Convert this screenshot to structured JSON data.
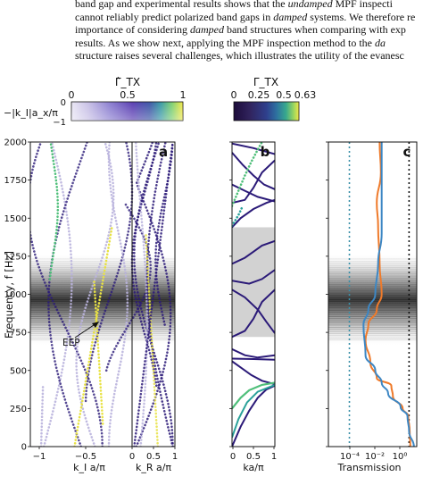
{
  "paper_text": {
    "lines": [
      {
        "parts": [
          {
            "t": "band gap and experimental results shows that the ",
            "i": false
          },
          {
            "t": "undamped",
            "i": true
          },
          {
            "t": " MPF inspecti",
            "i": false
          }
        ]
      },
      {
        "parts": [
          {
            "t": "cannot reliably predict polarized band gaps in ",
            "i": false
          },
          {
            "t": "damped",
            "i": true
          },
          {
            "t": " systems. We therefore re",
            "i": false
          }
        ]
      },
      {
        "parts": [
          {
            "t": "importance of considering ",
            "i": false
          },
          {
            "t": "damped",
            "i": true
          },
          {
            "t": " band structures when comparing with exp",
            "i": false
          }
        ]
      },
      {
        "parts": [
          {
            "t": "results.  As we show next, applying the MPF inspection method to the ",
            "i": false
          },
          {
            "t": "da",
            "i": true
          }
        ]
      },
      {
        "parts": [
          {
            "t": "structure raises several challenges, which illustrates the utility of the evanesc",
            "i": false
          }
        ]
      }
    ]
  },
  "colorbars": {
    "left": {
      "title": "Γ̂_TX",
      "tick_labels": [
        "0",
        "0.5",
        "1"
      ],
      "side_label": "−|k_I|a_x/π",
      "side_ticks": [
        "0",
        "−1"
      ]
    },
    "right": {
      "title": "Γ_TX",
      "tick_labels": [
        "0",
        "0.25",
        "0.5",
        "0.63"
      ]
    }
  },
  "colors": {
    "curve_dark": "#2b1a78",
    "curve_light": "#b9b3dd",
    "yellow": "#e8e244",
    "green": "#4fbf7a",
    "teal": "#2aa19a",
    "gap_fill": "#d2d2d2",
    "transmission_orange": "#ef7a2a",
    "transmission_blue": "#3d87c4",
    "dotted_teal": "#3a8fa8"
  },
  "panels": {
    "a": {
      "letter": "a",
      "left_xlabel": "k_I a/π",
      "right_xlabel": "k_R a/π",
      "left_ticks": [
        "−1",
        "−0.5",
        "0"
      ],
      "right_ticks": [
        "0.5",
        "1"
      ],
      "annotation": "EEP"
    },
    "b": {
      "letter": "b",
      "xlabel": "ka/π",
      "xticks": [
        "0",
        "0.5",
        "1"
      ]
    },
    "c": {
      "letter": "c",
      "xlabel": "Transmission",
      "xticks": [
        "10⁻⁴",
        "10⁻²",
        "10⁰"
      ]
    }
  },
  "y_axis": {
    "label": "Frequency, f [Hz]",
    "ticks": [
      "0",
      "250",
      "500",
      "750",
      "1000",
      "1250",
      "1500",
      "1750",
      "2000"
    ]
  },
  "chart_data": {
    "type": "line",
    "title": "",
    "ylabel": "Frequency, f [Hz]",
    "ylim": [
      0,
      2000
    ],
    "subplots": [
      {
        "panel": "a",
        "xlabel": "k_I a/π | k_R a/π",
        "xlim": [
          -1.2,
          1
        ],
        "note": "complex band structure, dotted curves colored by Γ̂_TX"
      },
      {
        "panel": "b",
        "xlabel": "ka/π",
        "xlim": [
          0,
          1
        ],
        "band_gap_shaded": [
          [
            720,
            1440
          ]
        ],
        "series": [
          {
            "name": "band1",
            "x": [
              0,
              0.25,
              0.5,
              0.75,
              1.0
            ],
            "y": [
              0,
              140,
              265,
              360,
              400
            ]
          },
          {
            "name": "band2",
            "x": [
              0,
              0.25,
              0.5,
              0.75,
              1.0
            ],
            "y": [
              495,
              480,
              455,
              430,
              415
            ]
          },
          {
            "name": "band3",
            "x": [
              0,
              0.3,
              0.6,
              1.0
            ],
            "y": [
              545,
              548,
              552,
              555
            ]
          }
        ]
      },
      {
        "panel": "c",
        "xlabel": "Transmission",
        "xscale": "log",
        "xlim": [
          1e-05,
          3
        ],
        "series": [
          {
            "name": "orange",
            "x": [
              1.2,
              1.1,
              0.9,
              0.4,
              0.1,
              0.08,
              0.01,
              0.004,
              0.002,
              0.003,
              0.01,
              0.02,
              0.015,
              0.012,
              0.01,
              0.018,
              0.015
            ],
            "y": [
              0,
              100,
              200,
              250,
              330,
              400,
              450,
              550,
              700,
              800,
              900,
              1000,
              1200,
              1450,
              1600,
              1800,
              2000
            ]
          },
          {
            "name": "blue",
            "x": [
              2,
              1.0,
              0.8,
              0.3,
              0.05,
              0.02,
              0.008,
              0.002,
              0.0015,
              0.003,
              0.008,
              0.012,
              0.02,
              0.02,
              0.02,
              0.02
            ],
            "y": [
              0,
              100,
              200,
              260,
              350,
              420,
              500,
              600,
              800,
              900,
              1000,
              1200,
              1400,
              1600,
              1800,
              2000
            ]
          }
        ]
      }
    ]
  }
}
